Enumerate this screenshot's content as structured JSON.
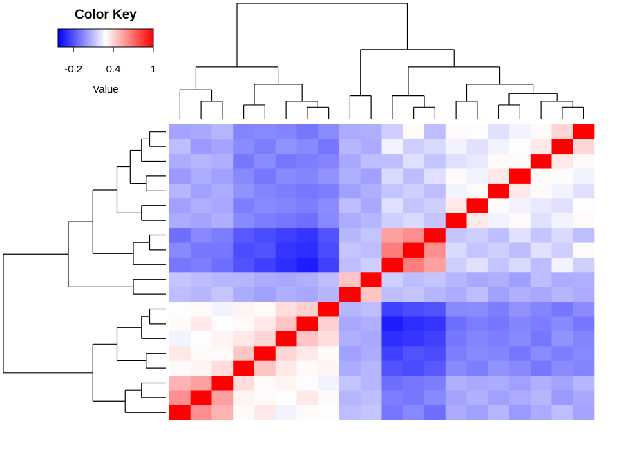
{
  "chart_data": {
    "type": "heatmap",
    "colorbar": {
      "title": "Color Key",
      "label": "Value",
      "ticks": [
        -0.2,
        0.4,
        1
      ],
      "zlim": [
        -0.43,
        1
      ],
      "colors": [
        "#0000ff",
        "#ffffff",
        "#ff0000"
      ]
    },
    "matrix": [
      [
        1,
        0.6,
        0.5,
        0.3,
        0.35,
        0.25,
        0.3,
        0.28,
        0.1,
        0.12,
        -0.1,
        -0.05,
        -0.12,
        0.05,
        0.02,
        0.08,
        0,
        0.05,
        0.1,
        0.03
      ],
      [
        0.6,
        1,
        0.55,
        0.32,
        0.3,
        0.28,
        0.35,
        0.3,
        0.08,
        0.1,
        -0.08,
        -0.1,
        -0.05,
        0.03,
        0.06,
        0.02,
        0.05,
        0.08,
        0,
        0.04
      ],
      [
        0.5,
        0.55,
        1,
        0.38,
        0.3,
        0.32,
        0.28,
        0.25,
        0.12,
        0.08,
        -0.12,
        -0.1,
        -0.08,
        0.06,
        0.04,
        0.05,
        0.02,
        0.06,
        0.03,
        0.08
      ],
      [
        0.3,
        0.32,
        0.38,
        1,
        0.45,
        0.35,
        0.3,
        0.32,
        0.05,
        0.08,
        -0.2,
        -0.22,
        -0.18,
        -0.05,
        -0.08,
        -0.02,
        -0.05,
        -0.1,
        -0.04,
        -0.06
      ],
      [
        0.35,
        0.3,
        0.3,
        0.45,
        1,
        0.4,
        0.35,
        0.3,
        0.02,
        0.05,
        -0.25,
        -0.2,
        -0.22,
        -0.08,
        -0.05,
        -0.06,
        -0.1,
        -0.04,
        -0.08,
        -0.05
      ],
      [
        0.25,
        0.28,
        0.32,
        0.35,
        0.4,
        1,
        0.45,
        0.38,
        0.06,
        0.04,
        -0.3,
        -0.28,
        -0.25,
        -0.1,
        -0.06,
        -0.08,
        -0.05,
        -0.1,
        -0.02,
        -0.06
      ],
      [
        0.3,
        0.35,
        0.28,
        0.3,
        0.35,
        0.45,
        1,
        0.42,
        0.04,
        0.06,
        -0.35,
        -0.3,
        -0.28,
        -0.12,
        -0.08,
        -0.1,
        -0.06,
        -0.08,
        -0.05,
        -0.1
      ],
      [
        0.28,
        0.3,
        0.25,
        0.32,
        0.3,
        0.38,
        0.42,
        1,
        0.08,
        0.1,
        -0.25,
        -0.22,
        -0.2,
        -0.05,
        -0.04,
        -0.08,
        -0.02,
        -0.06,
        -0.1,
        -0.04
      ],
      [
        0.1,
        0.08,
        0.12,
        0.05,
        0.02,
        0.06,
        0.04,
        0.08,
        1,
        0.45,
        0.1,
        0.12,
        0.08,
        0.05,
        0.1,
        0.02,
        0.06,
        0.04,
        0.08,
        0.05
      ],
      [
        0.12,
        0.1,
        0.08,
        0.08,
        0.05,
        0.04,
        0.06,
        0.1,
        0.45,
        1,
        0.15,
        0.1,
        0.12,
        0.08,
        0.04,
        0.06,
        0.02,
        0.1,
        0.05,
        0.06
      ],
      [
        -0.1,
        -0.08,
        -0.12,
        -0.2,
        -0.25,
        -0.3,
        -0.35,
        -0.25,
        0.1,
        0.15,
        1,
        0.65,
        0.55,
        0.15,
        0.2,
        0.12,
        0.18,
        0.1,
        0.25,
        0.15
      ],
      [
        -0.05,
        -0.1,
        -0.1,
        -0.22,
        -0.2,
        -0.28,
        -0.3,
        -0.22,
        0.12,
        0.1,
        0.65,
        1,
        0.6,
        0.18,
        0.12,
        0.15,
        0.1,
        0.2,
        0.15,
        0.3
      ],
      [
        -0.12,
        -0.05,
        -0.08,
        -0.18,
        -0.22,
        -0.25,
        -0.28,
        -0.2,
        0.08,
        0.12,
        0.55,
        0.6,
        1,
        0.12,
        0.15,
        0.1,
        0.2,
        0.12,
        0.18,
        0.1
      ],
      [
        0.05,
        0.03,
        0.06,
        -0.05,
        -0.08,
        -0.1,
        -0.12,
        -0.05,
        0.05,
        0.08,
        0.15,
        0.18,
        0.12,
        1,
        0.35,
        0.25,
        0.3,
        0.2,
        0.25,
        0.3
      ],
      [
        0.02,
        0.06,
        0.04,
        -0.08,
        -0.05,
        -0.06,
        -0.08,
        -0.04,
        0.1,
        0.04,
        0.2,
        0.12,
        0.15,
        0.35,
        1,
        0.3,
        0.25,
        0.22,
        0.2,
        0.28
      ],
      [
        0.08,
        0.02,
        0.05,
        -0.02,
        -0.06,
        -0.08,
        -0.1,
        -0.08,
        0.02,
        0.06,
        0.12,
        0.15,
        0.1,
        0.25,
        0.3,
        1,
        0.35,
        0.3,
        0.25,
        0.2
      ],
      [
        0,
        0.05,
        0.02,
        -0.05,
        -0.1,
        -0.05,
        -0.06,
        -0.02,
        0.06,
        0.02,
        0.18,
        0.1,
        0.2,
        0.3,
        0.25,
        0.35,
        1,
        0.3,
        0.28,
        0.25
      ],
      [
        0.05,
        0.08,
        0.06,
        -0.1,
        -0.04,
        -0.1,
        -0.08,
        -0.06,
        0.04,
        0.1,
        0.1,
        0.2,
        0.12,
        0.2,
        0.22,
        0.3,
        0.3,
        1,
        0.35,
        0.3
      ],
      [
        0.1,
        0,
        0.03,
        -0.04,
        -0.08,
        -0.02,
        -0.05,
        -0.1,
        0.08,
        0.05,
        0.25,
        0.15,
        0.18,
        0.25,
        0.2,
        0.25,
        0.28,
        0.35,
        1,
        0.4
      ],
      [
        0.03,
        0.04,
        0.08,
        -0.06,
        -0.05,
        -0.06,
        -0.1,
        -0.04,
        0.05,
        0.06,
        0.15,
        0.3,
        0.1,
        0.3,
        0.28,
        0.2,
        0.25,
        0.3,
        0.4,
        1
      ]
    ]
  }
}
